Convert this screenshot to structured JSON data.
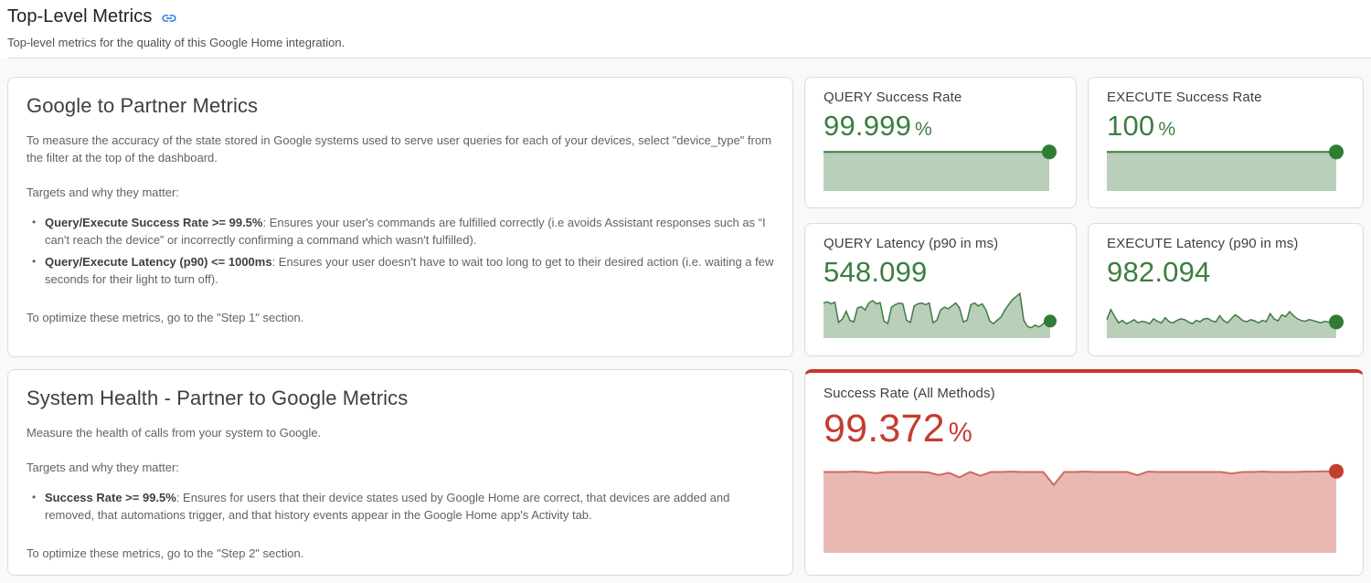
{
  "page": {
    "title": "Top-Level Metrics",
    "subtitle": "Top-level metrics for the quality of this Google Home integration."
  },
  "theme": {
    "good_color": "#3e7d41",
    "bad_color": "#c43d31",
    "bad_border_color": "#c5372c",
    "link_icon_color": "#1a73e8",
    "card_border_color": "#dadce0",
    "background_color": "#f8f9fa"
  },
  "icons": {
    "header_link": "link-icon"
  },
  "cards": {
    "google_to_partner": {
      "title": "Google to Partner Metrics",
      "paragraph1": "To measure the accuracy of the state stored in Google systems used to serve user queries for each of your devices, select \"device_type\" from the filter at the top of the dashboard.",
      "targets_label": "Targets and why they matter:",
      "bullets": [
        {
          "bold": "Query/Execute Success Rate >= 99.5%",
          "rest": ": Ensures your user's commands are fulfilled correctly (i.e avoids Assistant responses such as “I can't reach the device” or incorrectly confirming a command which wasn't fulfilled)."
        },
        {
          "bold": "Query/Execute Latency (p90) <= 1000ms",
          "rest": ": Ensures your user doesn't have to wait too long to get to their desired action (i.e. waiting a few seconds for their light to turn off)."
        }
      ],
      "footer": "To optimize these metrics, go to the \"Step 1\" section."
    },
    "system_health": {
      "title": "System Health - Partner to Google Metrics",
      "paragraph1": "Measure the health of calls from your system to Google.",
      "targets_label": "Targets and why they matter:",
      "bullets": [
        {
          "bold": "Success Rate >= 99.5%",
          "rest": ": Ensures for users that their device states used by Google Home are correct, that devices are added and removed, that automations trigger, and that history events appear in the Google Home app's Activity tab."
        }
      ],
      "footer": "To optimize these metrics, go to the \"Step 2\" section."
    }
  },
  "metrics": [
    {
      "label": "QUERY Success Rate",
      "value": "99.999",
      "unit": "%",
      "status": "good"
    },
    {
      "label": "EXECUTE Success Rate",
      "value": "100",
      "unit": "%",
      "status": "good"
    },
    {
      "label": "QUERY Latency (p90 in ms)",
      "value": "548.099",
      "unit": "",
      "status": "good"
    },
    {
      "label": "EXECUTE Latency (p90 in ms)",
      "value": "982.094",
      "unit": "",
      "status": "good"
    },
    {
      "label": "Success Rate (All Methods)",
      "value": "99.372",
      "unit": "%",
      "status": "bad"
    }
  ],
  "chart_data": [
    {
      "type": "area",
      "name": "QUERY Success Rate sparkline",
      "current_value": 99.999,
      "note": "flat sparkline, no axes; points are normalized heights (1 = top of plot band)",
      "points": [
        0.85,
        0.85,
        0.85,
        0.85,
        0.85,
        0.85,
        0.85,
        0.85,
        0.85,
        0.85,
        0.85,
        0.85,
        0.85,
        0.85,
        0.85,
        0.85,
        0.85,
        0.85,
        0.85,
        0.85
      ],
      "dot_radius": 8,
      "line_width": 2,
      "colors": {
        "line": "#3e7d41",
        "fill": "#b9cfba",
        "dot": "#2e7d32"
      }
    },
    {
      "type": "area",
      "name": "EXECUTE Success Rate sparkline",
      "current_value": 100,
      "note": "flat sparkline, no axes; points are normalized heights (1 = top of plot band)",
      "points": [
        0.85,
        0.85,
        0.85,
        0.85,
        0.85,
        0.85,
        0.85,
        0.85,
        0.85,
        0.85,
        0.85,
        0.85,
        0.85,
        0.85,
        0.85,
        0.85,
        0.85,
        0.85,
        0.85,
        0.85
      ],
      "dot_radius": 8,
      "line_width": 2,
      "colors": {
        "line": "#3e7d41",
        "fill": "#b9cfba",
        "dot": "#2e7d32"
      }
    },
    {
      "type": "area",
      "name": "QUERY Latency (p90 in ms) sparkline",
      "current_value": 548.099,
      "note": "estimated shape; points are normalized heights (1 = top of plot band)",
      "points": [
        0.72,
        0.75,
        0.7,
        0.74,
        0.25,
        0.33,
        0.52,
        0.3,
        0.26,
        0.6,
        0.63,
        0.55,
        0.72,
        0.78,
        0.7,
        0.73,
        0.28,
        0.22,
        0.62,
        0.68,
        0.72,
        0.7,
        0.3,
        0.25,
        0.65,
        0.7,
        0.72,
        0.68,
        0.72,
        0.24,
        0.3,
        0.55,
        0.62,
        0.58,
        0.65,
        0.72,
        0.6,
        0.26,
        0.3,
        0.68,
        0.72,
        0.65,
        0.7,
        0.55,
        0.28,
        0.22,
        0.3,
        0.38,
        0.55,
        0.68,
        0.8,
        0.88,
        0.95,
        0.3,
        0.15,
        0.12,
        0.18,
        0.14,
        0.2,
        0.3,
        0.28
      ],
      "dot_radius": 7,
      "line_width": 1.5,
      "colors": {
        "line": "#3e7d41",
        "fill": "#b9cfba",
        "dot": "#2e7d32"
      }
    },
    {
      "type": "area",
      "name": "EXECUTE Latency (p90 in ms) sparkline",
      "current_value": 982.094,
      "note": "estimated shape; points are normalized heights (1 = top of plot band)",
      "points": [
        0.3,
        0.55,
        0.38,
        0.22,
        0.28,
        0.2,
        0.24,
        0.3,
        0.22,
        0.26,
        0.24,
        0.2,
        0.32,
        0.26,
        0.22,
        0.35,
        0.25,
        0.22,
        0.28,
        0.32,
        0.3,
        0.24,
        0.2,
        0.28,
        0.25,
        0.32,
        0.33,
        0.27,
        0.24,
        0.4,
        0.28,
        0.22,
        0.32,
        0.42,
        0.36,
        0.27,
        0.25,
        0.3,
        0.27,
        0.22,
        0.28,
        0.25,
        0.45,
        0.32,
        0.27,
        0.42,
        0.38,
        0.5,
        0.4,
        0.32,
        0.28,
        0.26,
        0.3,
        0.28,
        0.25,
        0.22,
        0.26,
        0.24,
        0.22,
        0.24
      ],
      "dot_radius": 8,
      "line_width": 1.5,
      "colors": {
        "line": "#3e7d41",
        "fill": "#b9cfba",
        "dot": "#2e7d32"
      }
    },
    {
      "type": "area",
      "name": "Success Rate (All Methods) sparkline",
      "current_value": 99.372,
      "note": "mostly flat near top with occasional dips; points are normalized heights (1 = top of plot band)",
      "points": [
        0.97,
        0.97,
        0.97,
        0.975,
        0.97,
        0.955,
        0.97,
        0.97,
        0.97,
        0.97,
        0.965,
        0.93,
        0.96,
        0.9,
        0.97,
        0.92,
        0.97,
        0.97,
        0.975,
        0.97,
        0.97,
        0.97,
        0.8,
        0.97,
        0.97,
        0.975,
        0.97,
        0.97,
        0.97,
        0.97,
        0.93,
        0.975,
        0.97,
        0.97,
        0.97,
        0.97,
        0.97,
        0.97,
        0.97,
        0.95,
        0.97,
        0.97,
        0.975,
        0.97,
        0.97,
        0.97,
        0.975,
        0.975,
        0.98,
        0.98
      ],
      "dot_radius": 8,
      "line_width": 2,
      "colors": {
        "line": "#cd6a60",
        "fill": "#e9b8b2",
        "dot": "#c43d31"
      }
    }
  ]
}
